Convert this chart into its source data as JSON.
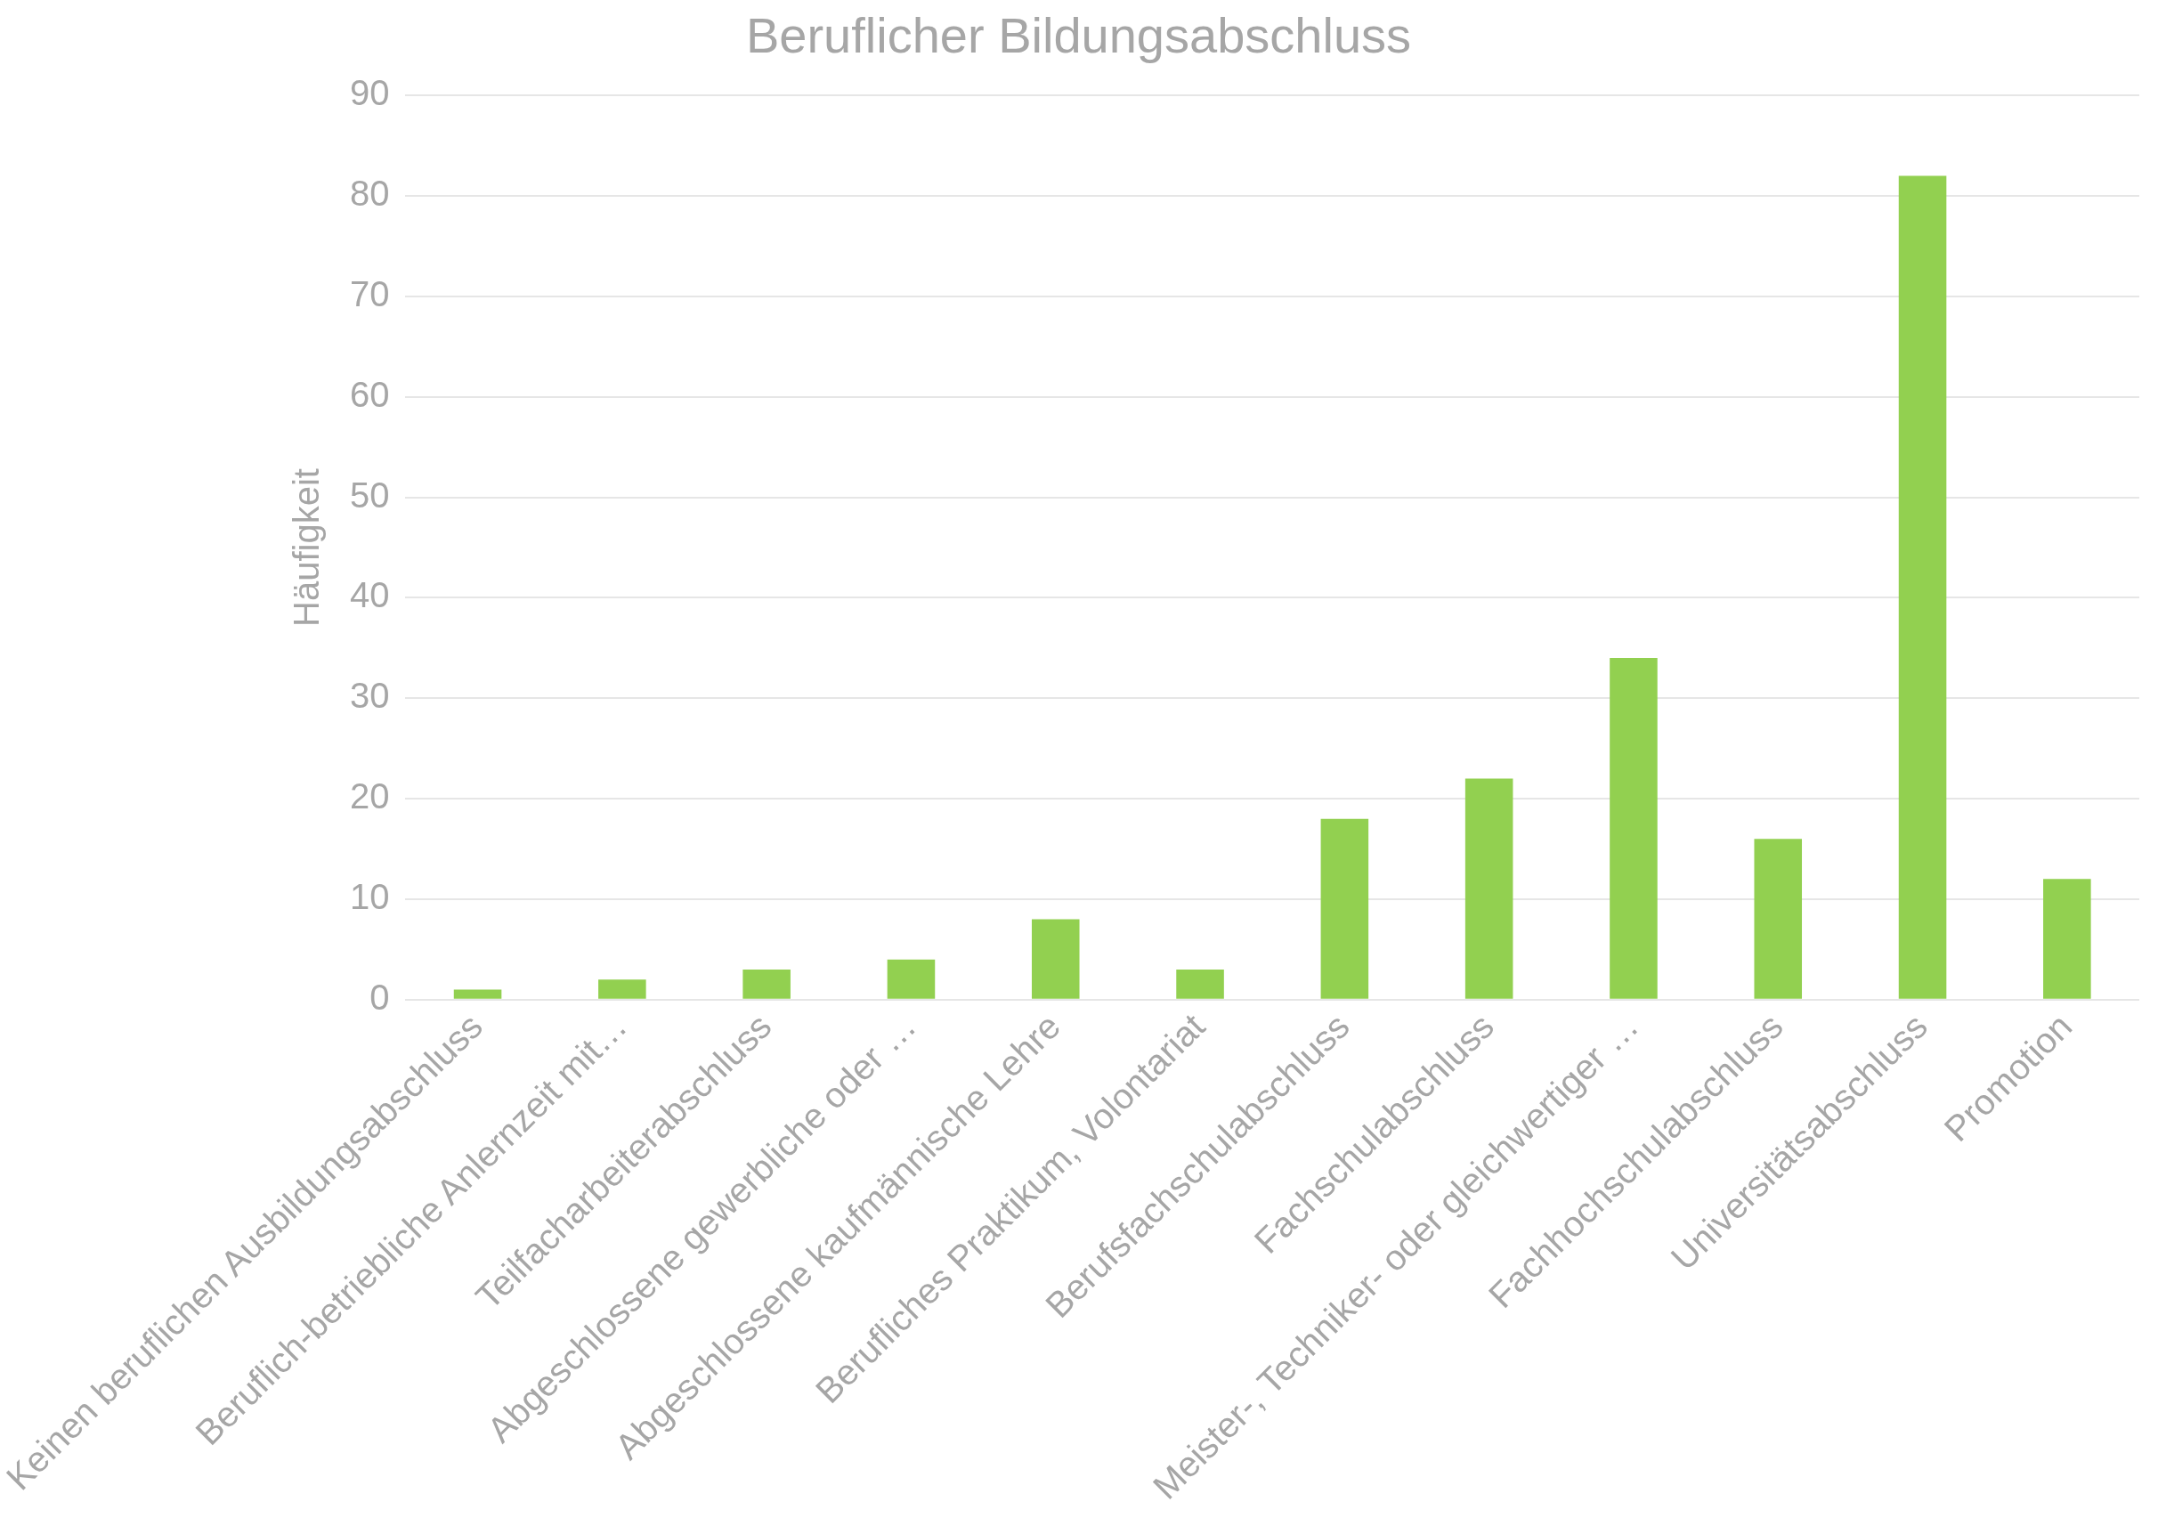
{
  "chart_data": {
    "type": "bar",
    "title": "Beruflicher Bildungsabschluss",
    "ylabel": "Häufigkeit",
    "categories": [
      "Keinen beruflichen Ausbildungsabschluss",
      "Beruflich-betriebliche Anlernzeit mit…",
      "Teilfacharbeiterabschluss",
      "Abgeschlossene gewerbliche oder …",
      "Abgeschlossene kaufmännische Lehre",
      "Berufliches Praktikum, Volontariat",
      "Berufsfachschulabschluss",
      "Fachschulabschluss",
      "Meister-, Techniker- oder gleichwertiger …",
      "Fachhochschulabschluss",
      "Universitätsabschluss",
      "Promotion"
    ],
    "values": [
      1,
      2,
      3,
      4,
      8,
      3,
      18,
      22,
      34,
      16,
      82,
      12
    ],
    "color": "#92d050",
    "ylim": [
      0,
      90
    ],
    "yticks": [
      0,
      10,
      20,
      30,
      40,
      50,
      60,
      70,
      80,
      90
    ],
    "grid": "y",
    "legend": false
  }
}
